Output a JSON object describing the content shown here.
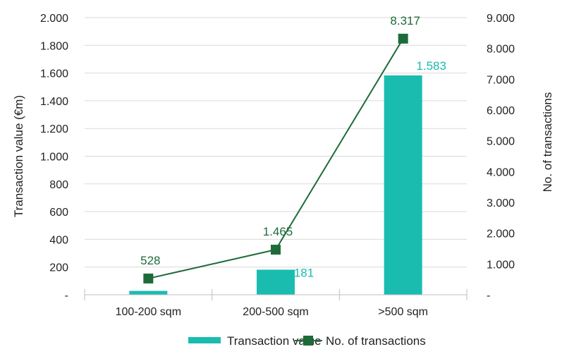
{
  "chart_data": {
    "type": "bar",
    "categories": [
      "100-200 sqm",
      "200-500 sqm",
      ">500 sqm"
    ],
    "series": [
      {
        "name": "Transaction value",
        "type": "bar",
        "axis": "left",
        "values": [
          28,
          181,
          1583
        ],
        "data_labels": [
          "",
          "181",
          "1.583"
        ],
        "color": "#1ABCB0"
      },
      {
        "name": "No. of transactions",
        "type": "line",
        "axis": "right",
        "values": [
          528,
          1465,
          8317
        ],
        "data_labels": [
          "528",
          "1.465",
          "8.317"
        ],
        "color": "#1E6B3A"
      }
    ],
    "left_axis": {
      "label": "Transaction value (€m)",
      "range": [
        0,
        2000
      ],
      "ticks": [
        0,
        200,
        400,
        600,
        800,
        1000,
        1200,
        1400,
        1600,
        1800,
        2000
      ],
      "tick_labels": [
        "-",
        "200",
        "400",
        "600",
        "800",
        "1.000",
        "1.200",
        "1.400",
        "1.600",
        "1.800",
        "2.000"
      ]
    },
    "right_axis": {
      "label": "No. of transactions",
      "range": [
        0,
        9000
      ],
      "ticks": [
        0,
        1000,
        2000,
        3000,
        4000,
        5000,
        6000,
        7000,
        8000,
        9000
      ],
      "tick_labels": [
        "-",
        "1.000",
        "2.000",
        "3.000",
        "4.000",
        "5.000",
        "6.000",
        "7.000",
        "8.000",
        "9.000"
      ]
    },
    "grid": true,
    "legend_position": "bottom"
  }
}
